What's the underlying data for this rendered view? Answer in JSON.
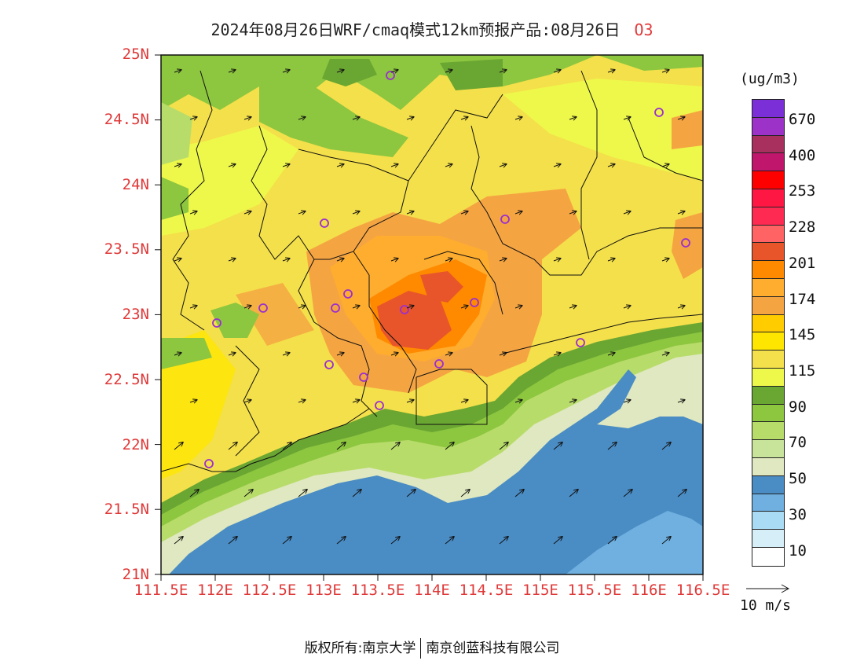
{
  "title": {
    "main": "2024年08月26日WRF/cmaq模式12km预报产品:08月26日",
    "species": "O3"
  },
  "axes": {
    "y_ticks": [
      "25N",
      "24.5N",
      "24N",
      "23.5N",
      "23N",
      "22.5N",
      "22N",
      "21.5N",
      "21N"
    ],
    "x_ticks": [
      "111.5E",
      "112E",
      "112.5E",
      "113E",
      "113.5E",
      "114E",
      "114.5E",
      "115E",
      "115.5E",
      "116E",
      "116.5E"
    ]
  },
  "colorbar": {
    "unit": "(ug/m3)",
    "levels": [
      "670",
      "400",
      "253",
      "228",
      "201",
      "174",
      "145",
      "115",
      "90",
      "70",
      "50",
      "30",
      "10"
    ],
    "colors": [
      "#7b2fd6",
      "#9c32c8",
      "#a8305e",
      "#c0166c",
      "#ff0000",
      "#ff1744",
      "#ff2a52",
      "#ff6363",
      "#e8552a",
      "#ff8a00",
      "#ffad2e",
      "#f5a442",
      "#ffcc00",
      "#ffe600",
      "#f4e04a",
      "#eef84a",
      "#6aa632",
      "#8dc63f",
      "#b8dc6a",
      "#c8e39a",
      "#dfe8c0",
      "#4a8cc4",
      "#6fb0e0",
      "#a9dcf4",
      "#d6eef8",
      "#ffffff"
    ]
  },
  "wind_reference": {
    "label": "10 m/s"
  },
  "footer": {
    "copyright": "版权所有:南京大学",
    "company": "南京创蓝科技有限公司"
  }
}
